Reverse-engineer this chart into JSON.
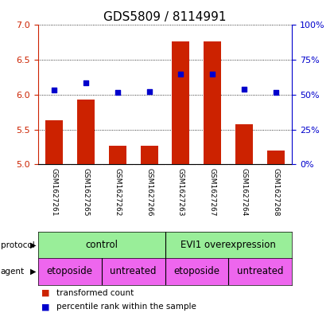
{
  "title": "GDS5809 / 8114991",
  "samples": [
    "GSM1627261",
    "GSM1627265",
    "GSM1627262",
    "GSM1627266",
    "GSM1627263",
    "GSM1627267",
    "GSM1627264",
    "GSM1627268"
  ],
  "bar_values": [
    5.63,
    5.93,
    5.27,
    5.27,
    6.77,
    6.77,
    5.57,
    5.2
  ],
  "bar_base": 5.0,
  "blue_values": [
    6.07,
    6.17,
    6.03,
    6.05,
    6.3,
    6.3,
    6.08,
    6.03
  ],
  "ylim_left": [
    5.0,
    7.0
  ],
  "ylim_right": [
    0,
    100
  ],
  "left_ticks": [
    5.0,
    5.5,
    6.0,
    6.5,
    7.0
  ],
  "right_ticks": [
    0,
    25,
    50,
    75,
    100
  ],
  "right_tick_labels": [
    "0%",
    "25%",
    "50%",
    "75%",
    "100%"
  ],
  "bar_color": "#CC2200",
  "blue_color": "#0000CC",
  "bar_width": 0.55,
  "protocol_labels": [
    "control",
    "EVI1 overexpression"
  ],
  "protocol_color": "#99EE99",
  "agent_labels": [
    "etoposide",
    "untreated",
    "etoposide",
    "untreated"
  ],
  "agent_color": "#EE66EE",
  "legend_red_label": "transformed count",
  "legend_blue_label": "percentile rank within the sample",
  "left_axis_color": "#CC2200",
  "right_axis_color": "#0000CC",
  "grid_color": "#000000",
  "sample_bg_color": "#CCCCCC",
  "divider_color": "#FFFFFF"
}
